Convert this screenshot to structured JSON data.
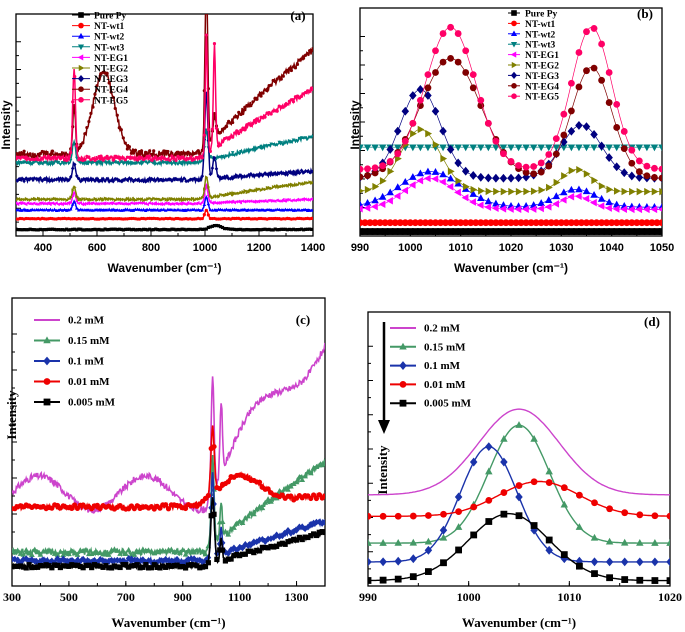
{
  "chart_data": [
    {
      "panel": "(a)",
      "type": "line",
      "xlabel": "Wavenumber (cm⁻¹)",
      "ylabel": "Intensity",
      "xlim": [
        300,
        1400
      ],
      "ylim": [
        0,
        100
      ],
      "xticks": [
        400,
        600,
        800,
        1000,
        1200,
        1400
      ],
      "legend_position": "top-left",
      "series": [
        {
          "name": "Pure Py",
          "color": "#000000",
          "marker": "square",
          "base": 3,
          "peaks": [
            [
              1040,
              2,
              20
            ]
          ],
          "rise": 0,
          "noise": 0.2
        },
        {
          "name": "NT-wt1",
          "color": "#ff0000",
          "marker": "circle",
          "base": 8,
          "peaks": [
            [
              1005,
              4,
              6
            ]
          ],
          "rise": 0,
          "noise": 0.2
        },
        {
          "name": "NT-wt2",
          "color": "#0000ff",
          "marker": "triangle-up",
          "base": 12,
          "peaks": [
            [
              1005,
              6,
              6
            ],
            [
              515,
              4,
              6
            ]
          ],
          "rise": 0,
          "noise": 0.3
        },
        {
          "name": "NT-wt3",
          "color": "#008080",
          "marker": "triangle-down",
          "base": 34,
          "peaks": [
            [
              1005,
              14,
              6
            ],
            [
              515,
              10,
              6
            ]
          ],
          "rise": 12,
          "noise": 0.8
        },
        {
          "name": "NT-EG1",
          "color": "#ff00ff",
          "marker": "triangle-left",
          "base": 15,
          "peaks": [
            [
              1005,
              8,
              6
            ],
            [
              515,
              5,
              6
            ]
          ],
          "rise": 2,
          "noise": 0.4
        },
        {
          "name": "NT-EG2",
          "color": "#808000",
          "marker": "triangle-right",
          "base": 17,
          "peaks": [
            [
              1005,
              10,
              6
            ],
            [
              515,
              6,
              6
            ]
          ],
          "rise": 8,
          "noise": 0.5
        },
        {
          "name": "NT-EG3",
          "color": "#000080",
          "marker": "diamond",
          "base": 26,
          "peaks": [
            [
              1005,
              40,
              6
            ],
            [
              1035,
              10,
              6
            ],
            [
              515,
              8,
              6
            ]
          ],
          "rise": 4,
          "noise": 0.8
        },
        {
          "name": "NT-EG4",
          "color": "#800000",
          "marker": "hexagon",
          "base": 38,
          "peaks": [
            [
              625,
              38,
              40
            ],
            [
              1005,
              78,
              5
            ],
            [
              1035,
              10,
              6
            ],
            [
              515,
              22,
              5
            ]
          ],
          "rise": 48,
          "noise": 1.5
        },
        {
          "name": "NT-EG5",
          "color": "#ff0066",
          "marker": "circle",
          "base": 36,
          "peaks": [
            [
              1005,
              54,
              4
            ],
            [
              1035,
              48,
              4
            ],
            [
              515,
              42,
              5
            ]
          ],
          "rise": 32,
          "noise": 1.0
        }
      ]
    },
    {
      "panel": "(b)",
      "type": "line",
      "xlabel": "Wavenumber (cm⁻¹)",
      "ylabel": "Intensity",
      "xlim": [
        990,
        1050
      ],
      "ylim": [
        0,
        100
      ],
      "xticks": [
        990,
        1000,
        1010,
        1020,
        1030,
        1040,
        1050
      ],
      "legend_position": "top-left",
      "series": [
        {
          "name": "Pure Py",
          "color": "#000000",
          "marker": "square",
          "base": 2,
          "peaks": [],
          "markerStep": 1
        },
        {
          "name": "NT-wt1",
          "color": "#ff0000",
          "marker": "circle",
          "base": 6,
          "peaks": [],
          "markerStep": 1
        },
        {
          "name": "NT-wt2",
          "color": "#0000ff",
          "marker": "triangle-up",
          "base": 13,
          "peaks": [
            [
              1004,
              16,
              6
            ],
            [
              1033,
              8,
              4
            ]
          ],
          "markerStep": 1.5
        },
        {
          "name": "NT-wt3",
          "color": "#008080",
          "marker": "triangle-down",
          "base": 40,
          "peaks": [],
          "markerStep": 1.5
        },
        {
          "name": "NT-EG1",
          "color": "#ff00ff",
          "marker": "triangle-left",
          "base": 12,
          "peaks": [
            [
              1004,
              14,
              5
            ],
            [
              1033,
              6,
              3
            ]
          ],
          "markerStep": 1.5
        },
        {
          "name": "NT-EG2",
          "color": "#808000",
          "marker": "triangle-right",
          "base": 20,
          "peaks": [
            [
              1002,
              28,
              4
            ],
            [
              1033,
              10,
              3
            ]
          ],
          "markerStep": 1.5
        },
        {
          "name": "NT-EG3",
          "color": "#000080",
          "marker": "diamond",
          "base": 26,
          "peaks": [
            [
              1002,
              40,
              4
            ],
            [
              1034,
              24,
              4
            ]
          ],
          "markerStep": 1.5
        },
        {
          "name": "NT-EG4",
          "color": "#800000",
          "marker": "hexagon",
          "base": 26,
          "peaks": [
            [
              1008,
              54,
              6
            ],
            [
              1036,
              50,
              4
            ]
          ],
          "markerStep": 1.5
        },
        {
          "name": "NT-EG5",
          "color": "#ff0066",
          "marker": "circle",
          "base": 30,
          "peaks": [
            [
              1008,
              64,
              5
            ],
            [
              1036,
              64,
              4
            ]
          ],
          "markerStep": 1.5
        }
      ]
    },
    {
      "panel": "(c)",
      "type": "line",
      "xlabel": "Wavenumber (cm⁻¹)",
      "ylabel": "Intensity",
      "xlim": [
        300,
        1400
      ],
      "ylim": [
        0,
        100
      ],
      "xticks": [
        300,
        500,
        700,
        900,
        1100,
        1300
      ],
      "legend_position": "top-left",
      "series": [
        {
          "name": "0.2 mM",
          "color": "#cc44cc",
          "marker": "none",
          "base": 33,
          "peaks": [
            [
              1005,
              42,
              5
            ],
            [
              1035,
              26,
              4
            ]
          ],
          "rise": 55,
          "noise": 1.2
        },
        {
          "name": "0.15 mM",
          "color": "#449966",
          "marker": "triangle-up",
          "base": 12,
          "peaks": [
            [
              1005,
              32,
              5
            ],
            [
              1035,
              12,
              4
            ]
          ],
          "rise": 32,
          "noise": 1.0
        },
        {
          "name": "0.1 mM",
          "color": "#1a33aa",
          "marker": "diamond",
          "base": 9,
          "peaks": [
            [
              1005,
              30,
              5
            ],
            [
              1035,
              10,
              4
            ]
          ],
          "rise": 14,
          "noise": 0.8
        },
        {
          "name": "0.01 mM",
          "color": "#ee0000",
          "marker": "circle",
          "base": 28,
          "peaks": [
            [
              1005,
              24,
              6
            ],
            [
              1100,
              10,
              70
            ]
          ],
          "rise": 4,
          "noise": 0.8
        },
        {
          "name": "0.005 mM",
          "color": "#000000",
          "marker": "square",
          "base": 7,
          "peaks": [
            [
              1005,
              24,
              6
            ],
            [
              1035,
              8,
              4
            ]
          ],
          "rise": 12,
          "noise": 0.6
        }
      ]
    },
    {
      "panel": "(d)",
      "type": "line",
      "xlabel": "Wavenumber (cm⁻¹)",
      "ylabel": "Intensity",
      "xlim": [
        990,
        1020
      ],
      "ylim": [
        0,
        100
      ],
      "xticks": [
        990,
        1000,
        1010,
        1020
      ],
      "legend_position": "top-left",
      "series": [
        {
          "name": "0.2 mM",
          "color": "#cc44cc",
          "marker": "none",
          "base": 34,
          "peaks": [
            [
              1005,
              32,
              4
            ]
          ]
        },
        {
          "name": "0.15 mM",
          "color": "#449966",
          "marker": "triangle-up",
          "base": 16,
          "peaks": [
            [
              1005,
              44,
              3
            ]
          ]
        },
        {
          "name": "0.1 mM",
          "color": "#1a33aa",
          "marker": "diamond",
          "base": 9,
          "peaks": [
            [
              1002,
              43,
              2.8
            ]
          ]
        },
        {
          "name": "0.01 mM",
          "color": "#ee0000",
          "marker": "circle",
          "base": 26,
          "peaks": [
            [
              1007,
              13,
              4
            ]
          ]
        },
        {
          "name": "0.005 mM",
          "color": "#000000",
          "marker": "square",
          "base": 2,
          "peaks": [
            [
              1004,
              25,
              4
            ]
          ]
        }
      ]
    }
  ]
}
